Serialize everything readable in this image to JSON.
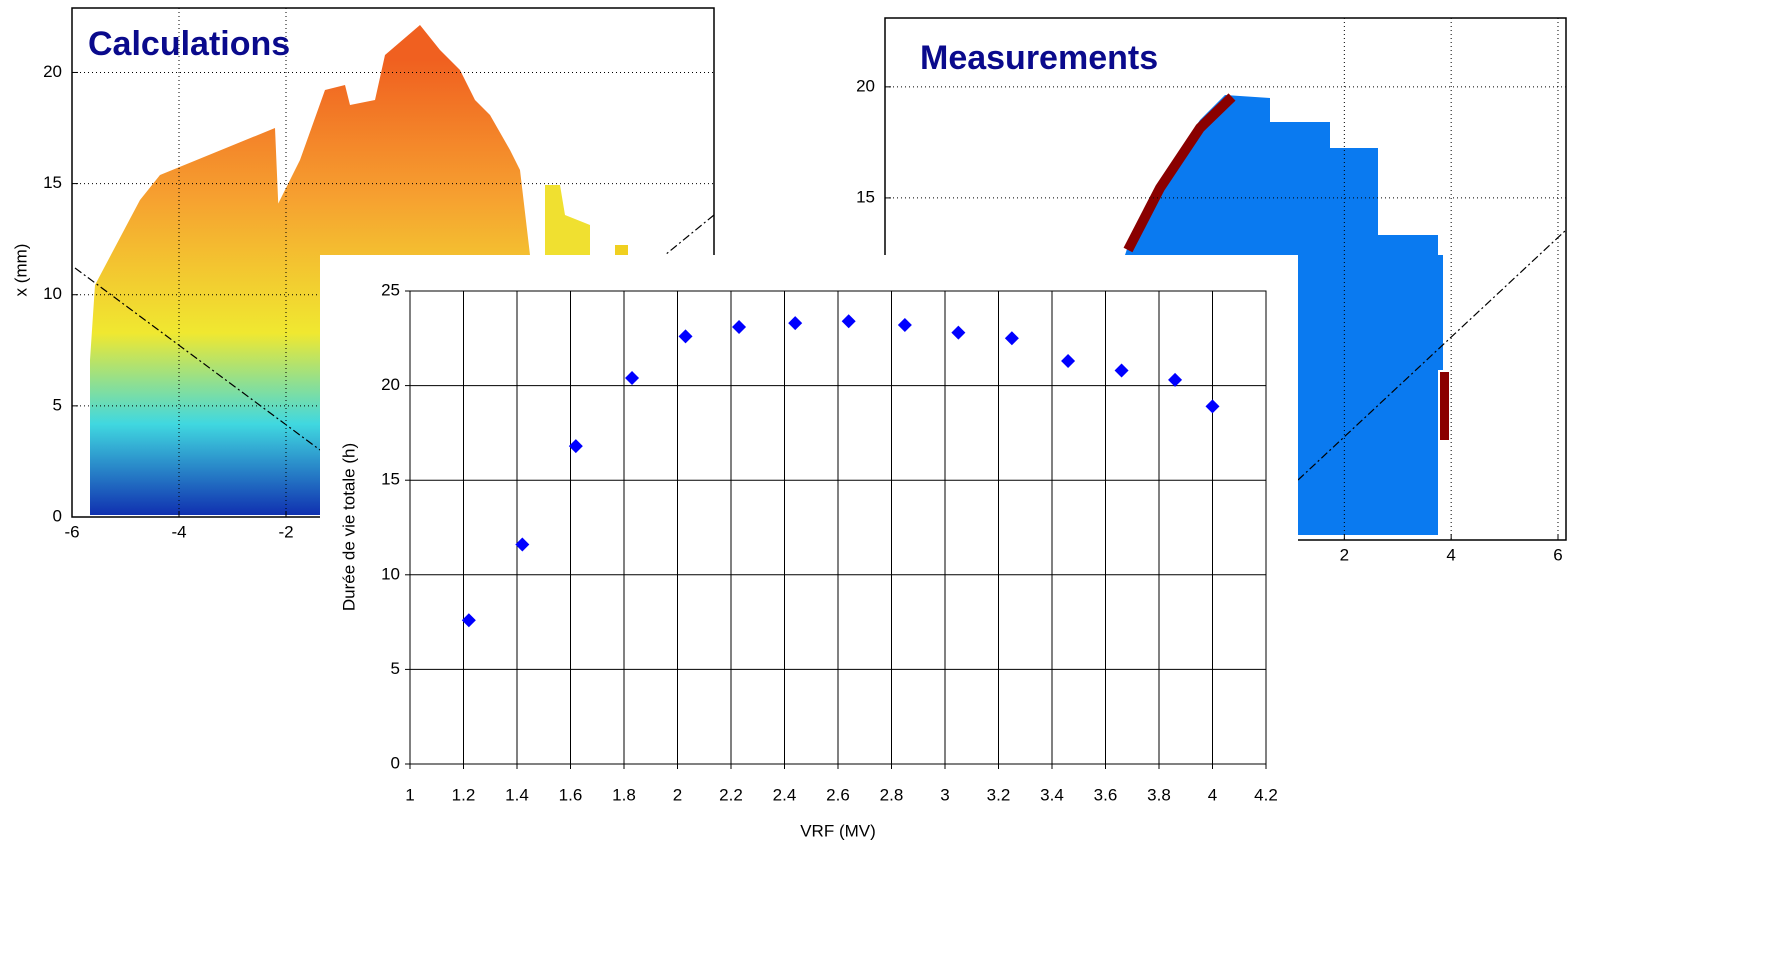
{
  "chart_data": [
    {
      "type": "heatmap",
      "title": "Calculations",
      "y_label": "x (mm)",
      "xlim": [
        -6,
        6
      ],
      "xticks": [
        -6,
        -4,
        -2
      ],
      "ylim": [
        0,
        22.9
      ],
      "yticks": [
        0,
        5,
        10,
        15,
        20
      ],
      "grid": true
    },
    {
      "type": "heatmap",
      "title": "Measurements",
      "xlim": [
        -6.6,
        6.15
      ],
      "xticks": [
        2,
        4,
        6
      ],
      "ylim": [
        -0.4,
        23.1
      ],
      "yticks": [
        15,
        20
      ],
      "grid": true
    },
    {
      "type": "scatter",
      "x_label": "VRF (MV)",
      "y_label": "Durée de vie totale (h)",
      "series": [
        {
          "color": "#0000ff",
          "x": [
            1.22,
            1.42,
            1.62,
            1.83,
            2.03,
            2.23,
            2.44,
            2.64,
            2.85,
            3.05,
            3.25,
            3.46,
            3.66,
            3.86,
            4.0
          ],
          "values": [
            7.6,
            11.6,
            16.8,
            20.4,
            22.6,
            23.1,
            23.3,
            23.4,
            23.2,
            22.8,
            22.5,
            21.3,
            20.8,
            20.3,
            18.9
          ]
        }
      ],
      "xlim": [
        1,
        4.2
      ],
      "xticks": [
        1,
        1.2,
        1.4,
        1.6,
        1.8,
        2,
        2.2,
        2.4,
        2.6,
        2.8,
        3,
        3.2,
        3.4,
        3.6,
        3.8,
        4,
        4.2
      ],
      "ylim": [
        0,
        25
      ],
      "yticks": [
        0,
        5,
        10,
        15,
        20,
        25
      ],
      "grid": true
    }
  ]
}
